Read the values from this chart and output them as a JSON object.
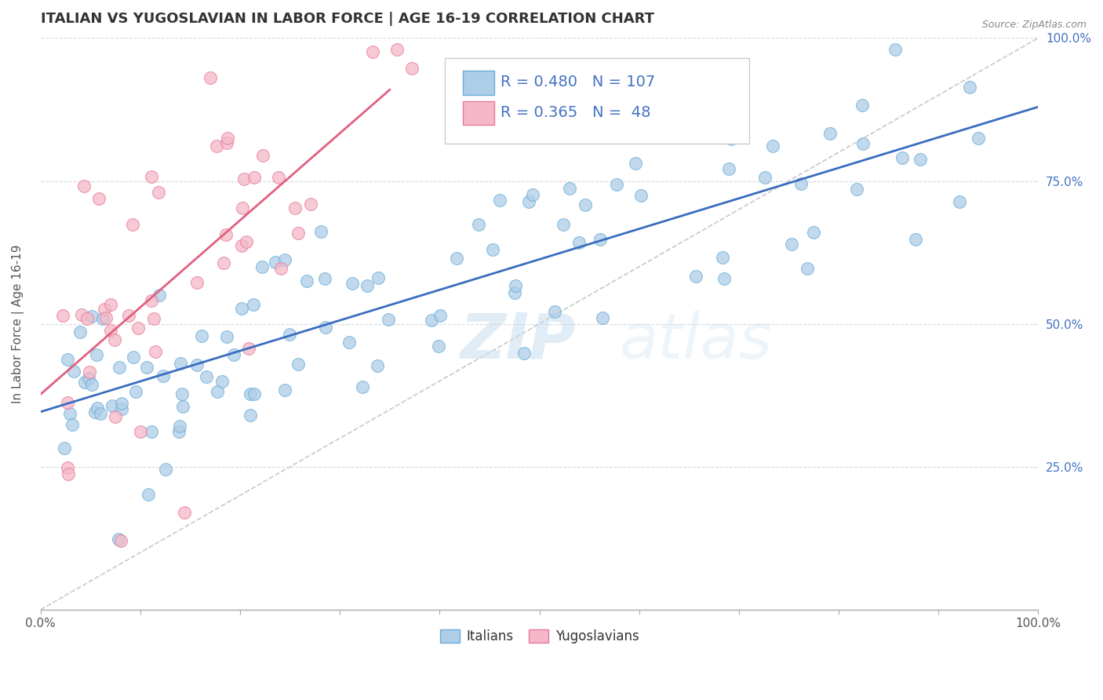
{
  "title": "ITALIAN VS YUGOSLAVIAN IN LABOR FORCE | AGE 16-19 CORRELATION CHART",
  "source_text": "Source: ZipAtlas.com",
  "ylabel": "In Labor Force | Age 16-19",
  "xlim": [
    0.0,
    1.0
  ],
  "ylim": [
    0.0,
    1.0
  ],
  "xticklabels_show": [
    "0.0%",
    "100.0%"
  ],
  "yticklabels": [
    "25.0%",
    "50.0%",
    "75.0%",
    "100.0%"
  ],
  "italian_color": "#aecde8",
  "italian_edge_color": "#6aaed6",
  "yugoslav_color": "#f4b8c8",
  "yugoslav_edge_color": "#e87a9a",
  "italian_line_color": "#3a6dbf",
  "yugoslav_line_color": "#e06080",
  "ref_line_color": "#c8c8c8",
  "italian_R": 0.48,
  "italian_N": 107,
  "yugoslav_R": 0.365,
  "yugoslav_N": 48,
  "legend_text_color": "#4472c4",
  "watermark": "ZIPatlas",
  "title_fontsize": 13,
  "axis_label_fontsize": 11,
  "tick_fontsize": 11,
  "legend_fontsize": 14
}
